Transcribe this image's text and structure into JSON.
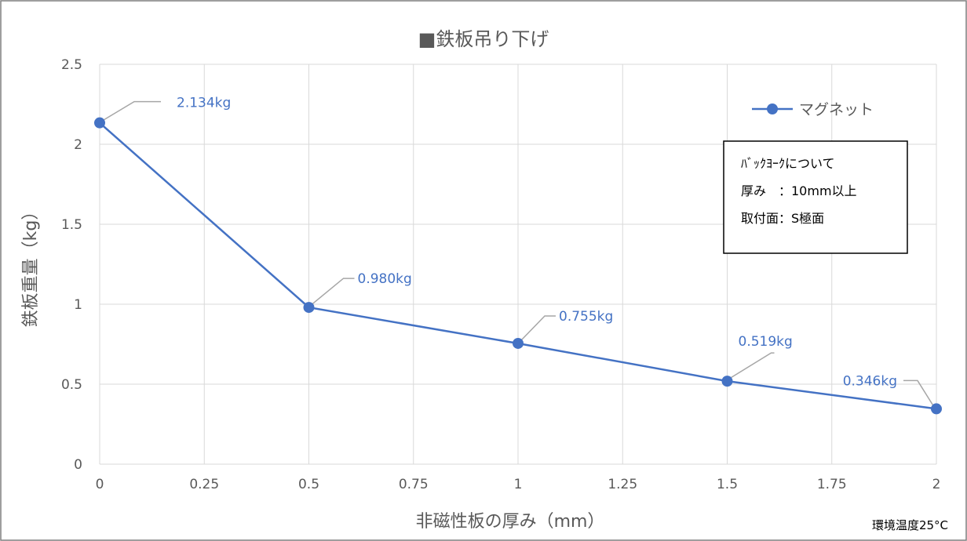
{
  "chart_data": {
    "type": "line",
    "title": "■鉄板吊り下げ",
    "xlabel": "非磁性板の厚み（mm）",
    "ylabel": "鉄板重量（kg）",
    "xlim": [
      0,
      2
    ],
    "ylim": [
      0,
      2.5
    ],
    "x_ticks": [
      "0",
      "0.25",
      "0.5",
      "0.75",
      "1",
      "1.25",
      "1.5",
      "1.75",
      "2"
    ],
    "y_ticks": [
      "0",
      "0.5",
      "1",
      "1.5",
      "2",
      "2.5"
    ],
    "grid": true,
    "legend_position": "top-right",
    "series": [
      {
        "name": "マグネット",
        "color": "#4472c4",
        "x": [
          0,
          0.5,
          1,
          1.5,
          2
        ],
        "y": [
          2.134,
          0.98,
          0.755,
          0.519,
          0.346
        ],
        "labels": [
          "2.134kg",
          "0.980kg",
          "0.755kg",
          "0.519kg",
          "0.346kg"
        ]
      }
    ],
    "annotation_box": {
      "lines": [
        "ﾊﾞｯｸﾖｰｸについて",
        "厚み　：10mm以上",
        "取付面：S極面"
      ]
    },
    "footnote": "環境温度25°C"
  }
}
